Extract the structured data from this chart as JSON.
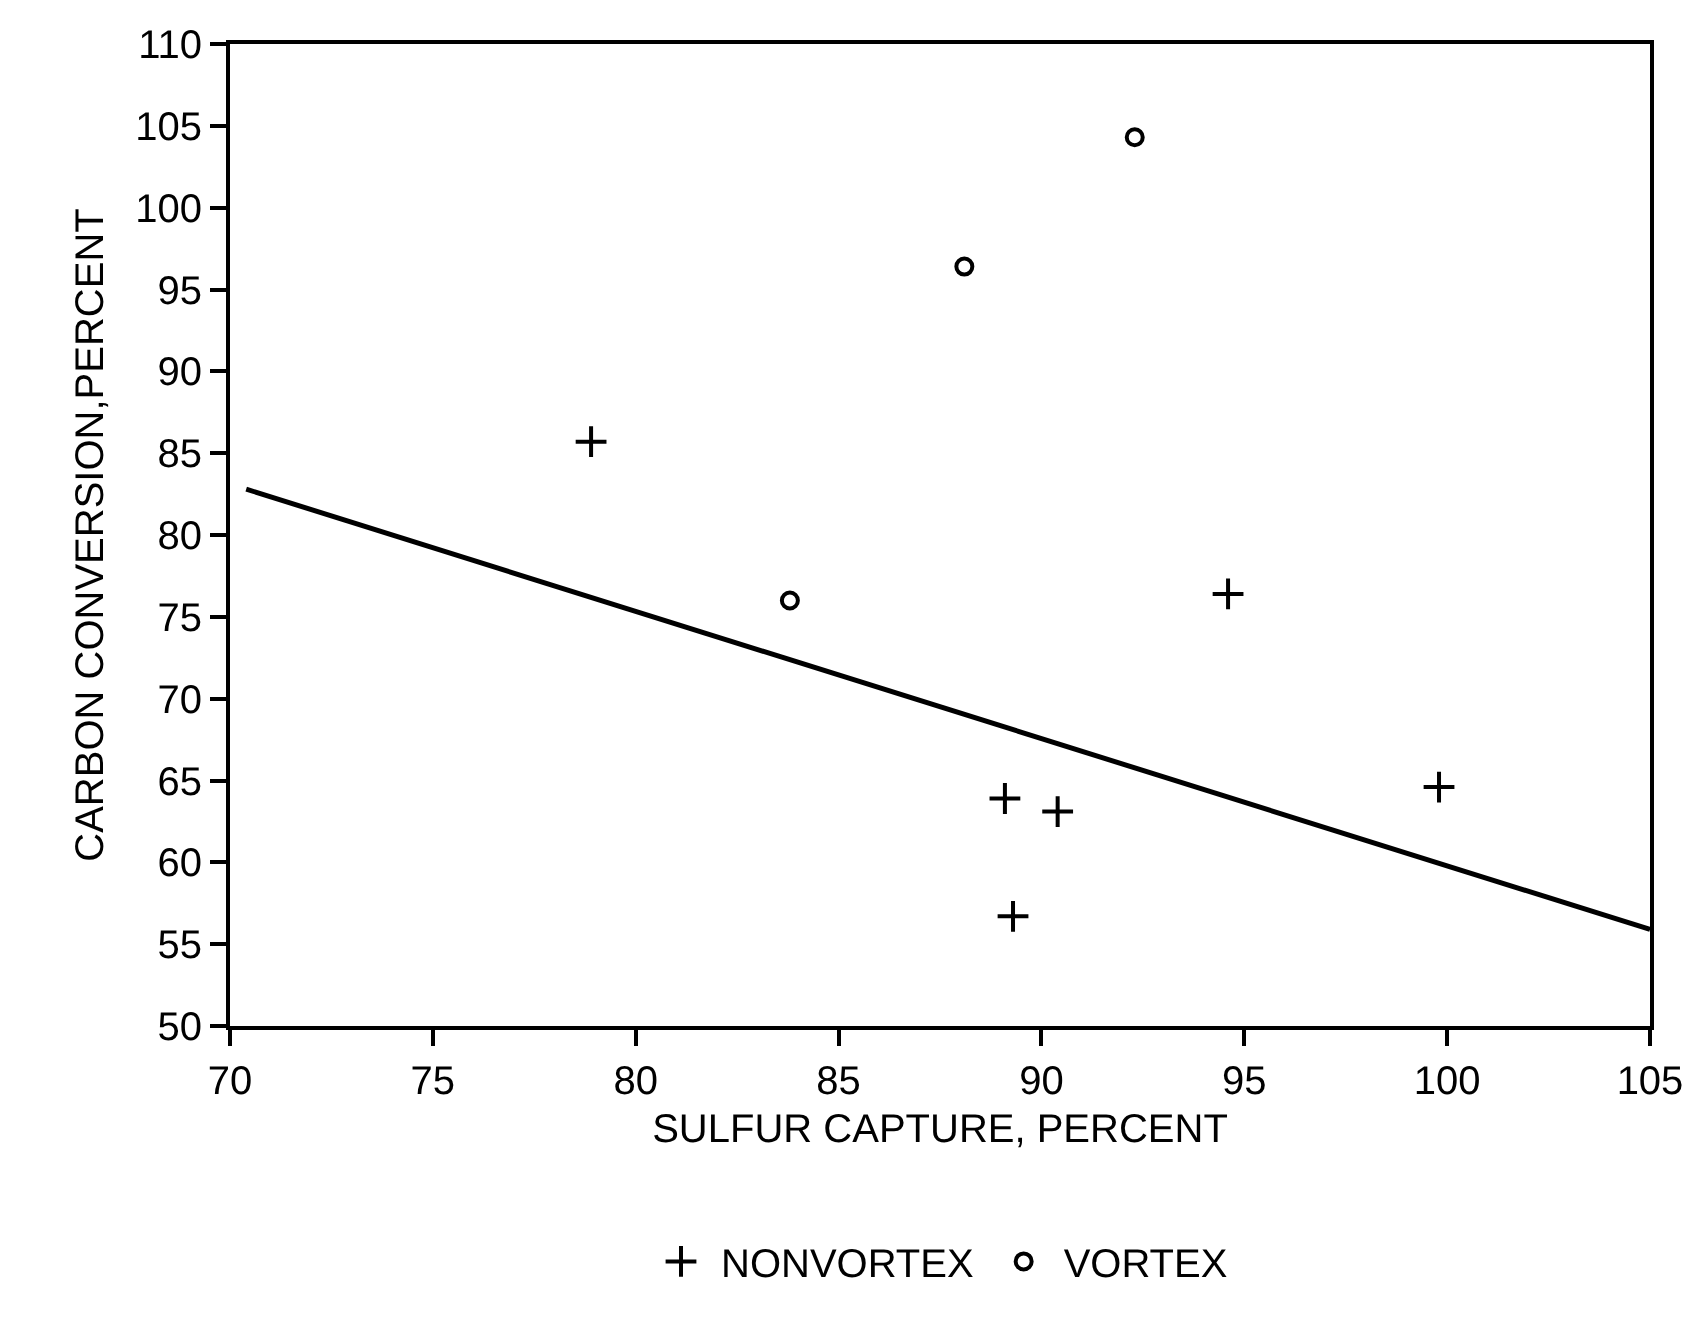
{
  "chart_data": {
    "type": "scatter",
    "xlabel": "SULFUR CAPTURE, PERCENT",
    "ylabel": "CARBON CONVERSION,PERCENT",
    "xlim": [
      70,
      105
    ],
    "xticks": [
      70,
      75,
      80,
      85,
      90,
      95,
      100,
      105
    ],
    "ylim": [
      50,
      110
    ],
    "yticks": [
      50,
      55,
      60,
      65,
      70,
      75,
      80,
      85,
      90,
      95,
      100,
      105,
      110
    ],
    "grid": false,
    "legend": "bottom",
    "series": [
      {
        "name": "NONVORTEX",
        "color": "#000000",
        "marker": "cross",
        "x": [
          78.9,
          94.6,
          89.1,
          90.4,
          89.3,
          99.8
        ],
        "values": [
          85.7,
          76.4,
          63.9,
          63.1,
          56.7,
          64.6
        ]
      },
      {
        "name": "VORTEX",
        "color": "#000000",
        "marker": "circle",
        "x": [
          83.8,
          88.1,
          92.3
        ],
        "values": [
          76.0,
          96.4,
          104.3
        ]
      },
      {
        "type": "line",
        "color": "#000000",
        "line_style": "solid",
        "marker": "none",
        "x": [
          70.4,
          105
        ],
        "values": [
          82.8,
          55.9
        ]
      }
    ]
  }
}
